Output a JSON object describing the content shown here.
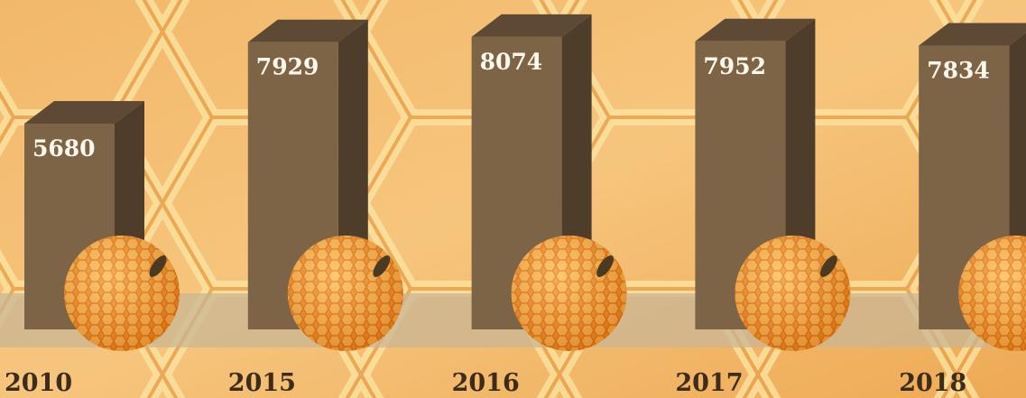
{
  "chart_data": {
    "type": "bar3d",
    "categories": [
      "2010",
      "2015",
      "2016",
      "2017",
      "2018"
    ],
    "values": [
      5680,
      7929,
      8074,
      7952,
      7834
    ],
    "color": "#7d6446"
  }
}
